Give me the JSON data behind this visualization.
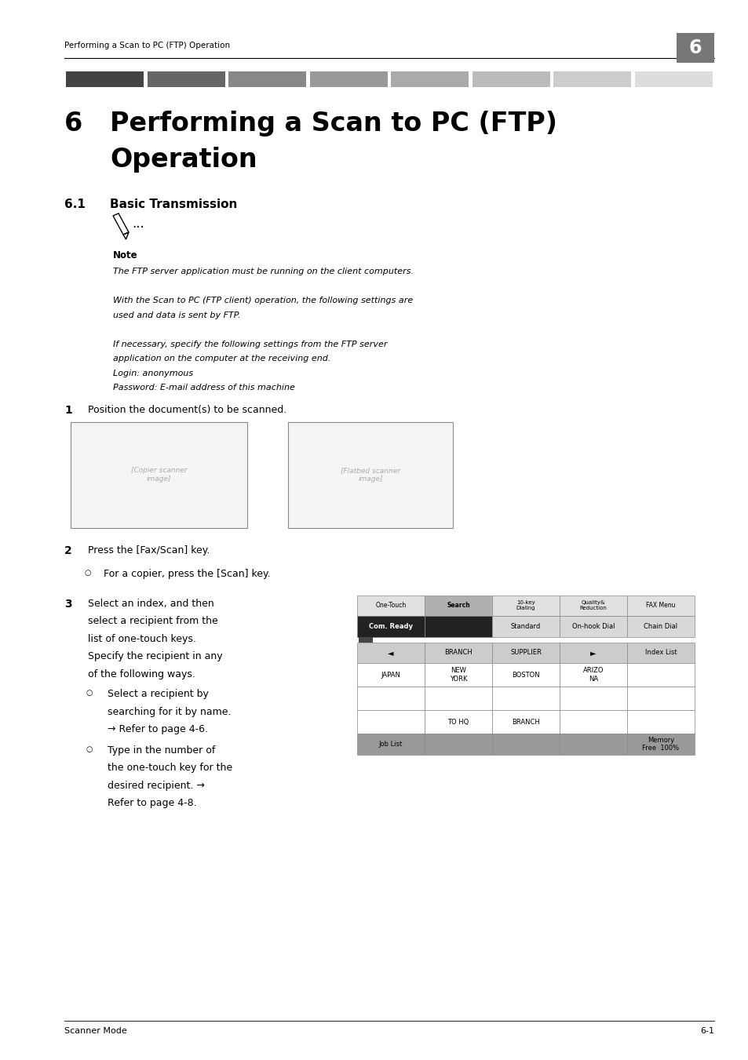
{
  "bg_color": "#ffffff",
  "page_width": 9.54,
  "page_height": 13.51,
  "header_text": "Performing a Scan to PC (FTP) Operation",
  "header_number": "6",
  "chapter_number": "6",
  "chapter_title_line1": "Performing a Scan to PC (FTP)",
  "chapter_title_line2": "Operation",
  "section_number": "6.1",
  "section_title": "Basic Transmission",
  "note_label": "Note",
  "note_line1": "The FTP server application must be running on the client computers.",
  "note_line2": "With the Scan to PC (FTP client) operation, the following settings are",
  "note_line3": "used and data is sent by FTP.",
  "note_line4": "If necessary, specify the following settings from the FTP server",
  "note_line5": "application on the computer at the receiving end.",
  "note_line6": "Login: anonymous",
  "note_line7": "Password: E-mail address of this machine",
  "step1_num": "1",
  "step1_text": "Position the document(s) to be scanned.",
  "step2_num": "2",
  "step2_text": "Press the [Fax/Scan] key.",
  "step2_sub": "For a copier, press the [Scan] key.",
  "step3_num": "3",
  "step3_text1": "Select an index, and then",
  "step3_text2": "select a recipient from the",
  "step3_text3": "list of one-touch keys.",
  "step3_text4": "Specify the recipient in any",
  "step3_text5": "of the following ways.",
  "step3_sub1_line1": "Select a recipient by",
  "step3_sub1_line2": "searching for it by name.",
  "step3_sub1_line3": "→ Refer to page 4-6.",
  "step3_sub2_line1": "Type in the number of",
  "step3_sub2_line2": "the one-touch key for the",
  "step3_sub2_line3": "desired recipient. →",
  "step3_sub2_line4": "Refer to page 4-8.",
  "footer_left": "Scanner Mode",
  "footer_right": "6-1",
  "gradient_colors": [
    "#444444",
    "#666666",
    "#888888",
    "#999999",
    "#aaaaaa",
    "#bbbbbb",
    "#cccccc",
    "#dddddd"
  ],
  "gradient_n": 8
}
